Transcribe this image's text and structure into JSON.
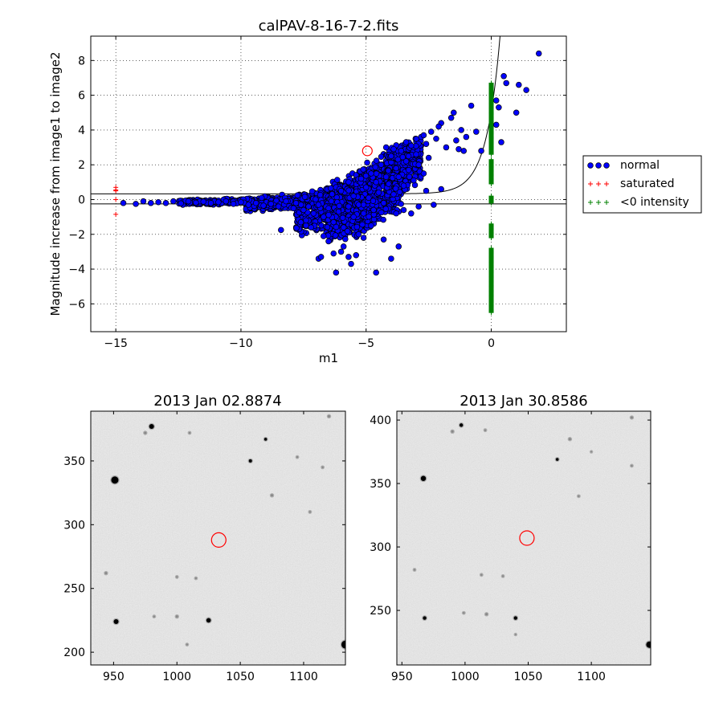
{
  "chart_data": [
    {
      "type": "scatter",
      "title": "calPAV-8-16-7-2.fits",
      "xlabel": "m1",
      "ylabel": "Magnitude increase from image1 to image2",
      "xlim": [
        -16,
        3
      ],
      "ylim": [
        -7.6,
        9.4
      ],
      "x_ticks": [
        -15,
        -10,
        -5,
        0
      ],
      "x_tick_labels": [
        "−15",
        "−10",
        "−5",
        "0"
      ],
      "y_ticks": [
        -6,
        -4,
        -2,
        0,
        2,
        4,
        6,
        8
      ],
      "y_tick_labels": [
        "−6",
        "−4",
        "−2",
        "0",
        "2",
        "4",
        "6",
        "8"
      ],
      "grid": true,
      "legend_position": "right-outside",
      "hline_y": -0.25,
      "threshold_curve": {
        "a": 0.33,
        "b": 0.00015,
        "k": 1.85
      },
      "highlight_point": {
        "x": -4.95,
        "y": 2.8
      },
      "colors": {
        "normal": "#0000ff",
        "saturated": "#ff0000",
        "negative": "#008000",
        "highlight": "#ff0000"
      },
      "series": [
        {
          "name": "normal",
          "marker": "circle",
          "points": [
            [
              -14.7,
              -0.2
            ],
            [
              -14.2,
              -0.25
            ],
            [
              -13.9,
              -0.1
            ],
            [
              -13.6,
              -0.2
            ],
            [
              -13.3,
              -0.15
            ],
            [
              -13.0,
              -0.2
            ],
            [
              -12.7,
              -0.1
            ],
            [
              -12.4,
              -0.22
            ],
            [
              -12.1,
              -0.1
            ],
            [
              -11.8,
              -0.18
            ],
            [
              -11.5,
              -0.12
            ],
            [
              -11.2,
              -0.2
            ],
            [
              -10.9,
              -0.15
            ],
            [
              -10.6,
              -0.1
            ],
            [
              -10.3,
              -0.25
            ],
            [
              -10.0,
              -0.15
            ],
            [
              -9.7,
              -0.3
            ],
            [
              -9.4,
              -0.2
            ],
            [
              -9.1,
              -0.35
            ],
            [
              -8.8,
              -0.25
            ],
            [
              -8.5,
              -0.4
            ],
            [
              -8.4,
              -1.75
            ],
            [
              -8.2,
              -0.1
            ],
            [
              -7.9,
              -0.5
            ],
            [
              -7.6,
              -0.3
            ],
            [
              -7.4,
              -1.2
            ],
            [
              -7.2,
              -1.6
            ],
            [
              -7.0,
              -0.9
            ],
            [
              -6.9,
              -3.4
            ],
            [
              -6.8,
              -3.3
            ],
            [
              -6.7,
              -2.1
            ],
            [
              -6.5,
              -2.4
            ],
            [
              -6.3,
              -3.1
            ],
            [
              -6.2,
              -4.2
            ],
            [
              -6.0,
              -3.0
            ],
            [
              -5.9,
              -2.7
            ],
            [
              -5.7,
              -3.3
            ],
            [
              -5.6,
              -3.7
            ],
            [
              -5.4,
              -3.2
            ],
            [
              -5.3,
              -2.0
            ],
            [
              -5.1,
              -2.2
            ],
            [
              -4.8,
              -1.5
            ],
            [
              -4.6,
              -4.2
            ],
            [
              -4.3,
              -2.3
            ],
            [
              -4.0,
              -3.4
            ],
            [
              -3.7,
              -2.7
            ],
            [
              -3.5,
              -0.6
            ],
            [
              -3.2,
              -0.8
            ],
            [
              -2.9,
              -0.4
            ],
            [
              -2.6,
              0.5
            ],
            [
              -2.3,
              -0.3
            ],
            [
              -2.0,
              0.6
            ],
            [
              -6.0,
              0.5
            ],
            [
              -5.7,
              1.0
            ],
            [
              -5.5,
              0.2
            ],
            [
              -5.2,
              1.2
            ],
            [
              -5.0,
              0.7
            ],
            [
              -4.8,
              1.5
            ],
            [
              -4.6,
              1.0
            ],
            [
              -4.4,
              2.0
            ],
            [
              -4.2,
              1.3
            ],
            [
              -4.0,
              2.5
            ],
            [
              -3.8,
              1.8
            ],
            [
              -3.6,
              2.8
            ],
            [
              -3.4,
              2.2
            ],
            [
              -3.2,
              3.1
            ],
            [
              -3.0,
              2.6
            ],
            [
              -2.8,
              3.6
            ],
            [
              -2.6,
              3.2
            ],
            [
              -2.4,
              3.9
            ],
            [
              -2.2,
              3.5
            ],
            [
              -2.0,
              4.4
            ],
            [
              -1.8,
              3.0
            ],
            [
              -1.6,
              4.7
            ],
            [
              -1.4,
              3.4
            ],
            [
              -1.2,
              4.0
            ],
            [
              -1.0,
              3.6
            ],
            [
              -0.8,
              5.4
            ],
            [
              -0.6,
              3.9
            ],
            [
              -0.4,
              2.8
            ],
            [
              -1.5,
              5.0
            ],
            [
              -1.3,
              2.9
            ],
            [
              -1.1,
              2.8
            ],
            [
              0.2,
              5.7
            ],
            [
              0.3,
              5.3
            ],
            [
              0.4,
              3.3
            ],
            [
              0.5,
              7.1
            ],
            [
              0.6,
              6.7
            ],
            [
              1.0,
              5.0
            ],
            [
              1.1,
              6.6
            ],
            [
              1.4,
              6.3
            ],
            [
              1.9,
              8.4
            ],
            [
              0.2,
              4.3
            ],
            [
              -7.8,
              -0.2
            ],
            [
              -7.5,
              -0.6
            ],
            [
              -7.3,
              -0.4
            ],
            [
              -7.1,
              -0.8
            ],
            [
              -6.9,
              -0.3
            ],
            [
              -6.7,
              -1.0
            ],
            [
              -6.5,
              -0.5
            ],
            [
              -6.3,
              -1.3
            ],
            [
              -6.1,
              -0.7
            ],
            [
              -5.9,
              -1.6
            ],
            [
              -5.7,
              -0.4
            ],
            [
              -5.5,
              -1.0
            ],
            [
              -5.3,
              -0.3
            ],
            [
              -5.1,
              -0.8
            ],
            [
              -4.9,
              0.1
            ],
            [
              -4.7,
              -0.6
            ],
            [
              -4.5,
              0.4
            ],
            [
              -4.3,
              -0.2
            ],
            [
              -4.1,
              0.9
            ],
            [
              -3.9,
              0.3
            ],
            [
              -3.7,
              1.3
            ],
            [
              -3.5,
              0.8
            ],
            [
              -3.3,
              1.7
            ],
            [
              -3.1,
              1.1
            ],
            [
              -2.9,
              2.0
            ],
            [
              -2.7,
              1.5
            ],
            [
              -2.5,
              2.4
            ],
            [
              -4.2,
              3.0
            ],
            [
              -3.9,
              2.9
            ],
            [
              -3.4,
              3.3
            ],
            [
              -2.7,
              3.7
            ],
            [
              -2.1,
              4.2
            ]
          ],
          "clusters": [
            {
              "x": [
                -9.8,
                -6.8
              ],
              "y": [
                -0.6,
                0.3
              ],
              "n": 340
            },
            {
              "x": [
                -7.8,
                -5.6
              ],
              "y": [
                -1.8,
                0.8
              ],
              "n": 420
            },
            {
              "x": [
                -6.6,
                -4.6
              ],
              "y": [
                -2.4,
                1.6
              ],
              "n": 480
            },
            {
              "x": [
                -5.4,
                -3.6
              ],
              "y": [
                -1.4,
                2.6
              ],
              "n": 440
            },
            {
              "x": [
                -4.2,
                -2.8
              ],
              "y": [
                0.4,
                3.4
              ],
              "n": 300
            },
            {
              "x": [
                -12.5,
                -9.5
              ],
              "y": [
                -0.3,
                0.05
              ],
              "n": 160
            }
          ]
        },
        {
          "name": "saturated",
          "marker": "plus",
          "points": [
            [
              -15,
              0.7
            ],
            [
              -15,
              0.5
            ],
            [
              -15,
              0.55
            ],
            [
              -15,
              0.0
            ],
            [
              -15,
              -0.85
            ]
          ]
        },
        {
          "name": "<0 intensity",
          "marker": "plus",
          "x_constant": 0,
          "y_ranges": [
            [
              -6.5,
              -2.8
            ],
            [
              -2.2,
              -1.4
            ],
            [
              -0.2,
              0.2
            ],
            [
              0.9,
              2.3
            ],
            [
              2.6,
              6.7
            ]
          ],
          "density_per_unit": 40
        }
      ]
    },
    {
      "type": "image",
      "title": "2013 Jan 02.8874",
      "xlim": [
        932,
        1133
      ],
      "ylim": [
        190,
        389
      ],
      "x_ticks": [
        950,
        1000,
        1050,
        1100
      ],
      "y_ticks": [
        200,
        250,
        300,
        350
      ],
      "circle": {
        "x": 1033,
        "y": 288,
        "r": 6
      },
      "stars": [
        [
          951,
          335,
          4.5
        ],
        [
          980,
          377,
          3
        ],
        [
          952,
          224,
          3
        ],
        [
          1025,
          225,
          2.8
        ],
        [
          1133,
          206,
          5
        ],
        [
          1058,
          350,
          2
        ],
        [
          1070,
          367,
          1.8
        ],
        [
          975,
          372,
          1.5
        ],
        [
          1075,
          323,
          1.5
        ],
        [
          944,
          262,
          1.5
        ],
        [
          1000,
          228,
          1.5
        ],
        [
          1015,
          258,
          1.2
        ],
        [
          1120,
          385,
          1.5
        ],
        [
          1010,
          372,
          1.2
        ],
        [
          1105,
          310,
          1.2
        ],
        [
          982,
          228,
          1.2
        ],
        [
          1000,
          259,
          1.2
        ],
        [
          1095,
          353,
          1.2
        ],
        [
          1008,
          206,
          1.2
        ],
        [
          1115,
          345,
          1.2
        ]
      ]
    },
    {
      "type": "image",
      "title": "2013 Jan 30.8586",
      "xlim": [
        946,
        1147
      ],
      "ylim": [
        207,
        407
      ],
      "x_ticks": [
        950,
        1000,
        1050,
        1100
      ],
      "y_ticks": [
        250,
        300,
        350,
        400
      ],
      "circle": {
        "x": 1049,
        "y": 307,
        "r": 6
      },
      "stars": [
        [
          967,
          354,
          3.2
        ],
        [
          997,
          396,
          2.2
        ],
        [
          968,
          244,
          2.2
        ],
        [
          1040,
          244,
          2.2
        ],
        [
          1146,
          223,
          4
        ],
        [
          1073,
          369,
          1.8
        ],
        [
          990,
          391,
          1.5
        ],
        [
          1083,
          385,
          1.5
        ],
        [
          1017,
          247,
          1.5
        ],
        [
          1132,
          402,
          1.5
        ],
        [
          960,
          282,
          1.2
        ],
        [
          999,
          248,
          1.2
        ],
        [
          1016,
          392,
          1.2
        ],
        [
          1030,
          277,
          1.2
        ],
        [
          1013,
          278,
          1.2
        ],
        [
          1090,
          340,
          1.2
        ],
        [
          1132,
          364,
          1.2
        ],
        [
          1040,
          231,
          1.0
        ],
        [
          1100,
          375,
          1.0
        ]
      ]
    }
  ]
}
